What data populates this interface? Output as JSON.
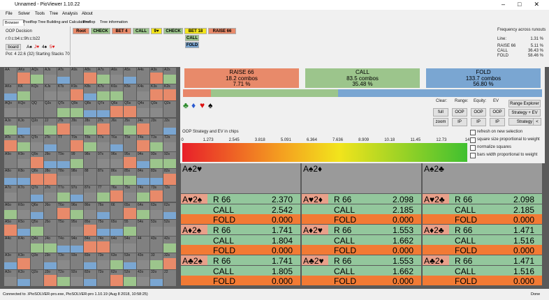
{
  "window": {
    "title": "Unnamed - PioViewer 1.10.22"
  },
  "menu": [
    "File",
    "Solver",
    "Tools",
    "Tree",
    "Analysis",
    "About"
  ],
  "tabs": [
    "Browser",
    "Postflop Tree Building and Calculations",
    "Preflop",
    "Tree information"
  ],
  "decision": {
    "label": "OOP Decision",
    "line": "r:0:c:b4:c:9h:c:b22",
    "board_button": "board",
    "cards": [
      "A♠",
      "J♥",
      "4♠",
      "5♥"
    ],
    "pot": "Pot: 4 22.6 (32) Starting Stacks 70"
  },
  "tree_nav": [
    "Root",
    "CHECK",
    "BET 4",
    "CALL",
    "9♥",
    "CHECK",
    "BET 18",
    "RAISE 66"
  ],
  "tree_children": [
    "CALL",
    "FOLD"
  ],
  "frequency": {
    "title": "Frequency across runouts",
    "rows": [
      [
        "Line:",
        "1.31 %"
      ],
      [
        "RAISE 66",
        "5.11 %"
      ],
      [
        "CALL",
        "36.43 %"
      ],
      [
        "FOLD",
        "58.46 %"
      ]
    ]
  },
  "actions": [
    {
      "name": "RAISE 66",
      "combos": "18.2 combos",
      "pct": "7.71 %"
    },
    {
      "name": "CALL",
      "combos": "83.5 combos",
      "pct": "35.48 %"
    },
    {
      "name": "FOLD",
      "combos": "133.7 combos",
      "pct": "56.80 %"
    }
  ],
  "suits": [
    "♣",
    "♦",
    "♥",
    "♠"
  ],
  "controls": {
    "labels": [
      "Clear:",
      "Range:",
      "Equity:",
      "EV"
    ],
    "buttons": [
      [
        "full",
        "OOP",
        "OOP",
        "OOP"
      ],
      [
        "zoom",
        "IP",
        "IP",
        "IP"
      ]
    ]
  },
  "side_buttons": [
    "Range Explorer",
    "Strategy + EV",
    "Strategy",
    "<"
  ],
  "options": [
    "refresh on new selection",
    "square size proportional to weight",
    "normalize squares",
    "bars width proportional to weight"
  ],
  "scale": {
    "title": "OOP Strategy and EV in chips",
    "ticks": [
      "0",
      "1.273",
      "2.545",
      "3.818",
      "5.091",
      "6.364",
      "7.636",
      "8.909",
      "10.18",
      "11.45",
      "12.73",
      "14"
    ]
  },
  "combos": {
    "headers": [
      "A♠2♥",
      "A♠2♦",
      "A♠2♣"
    ],
    "rows": [
      [
        {
          "hand": "A♥2♠",
          "lines": [
            [
              "R 66",
              "2.370"
            ],
            [
              "CALL",
              "2.542"
            ],
            [
              "FOLD",
              "0.000"
            ]
          ]
        },
        {
          "hand": "A♥2♦",
          "lines": [
            [
              "R 66",
              "2.098"
            ],
            [
              "CALL",
              "2.185"
            ],
            [
              "FOLD",
              "0.000"
            ]
          ]
        },
        {
          "hand": "A♥2♣",
          "lines": [
            [
              "R 66",
              "2.098"
            ],
            [
              "CALL",
              "2.185"
            ],
            [
              "FOLD",
              "0.000"
            ]
          ]
        }
      ],
      [
        {
          "hand": "A♦2♠",
          "lines": [
            [
              "R 66",
              "1.741"
            ],
            [
              "CALL",
              "1.804"
            ],
            [
              "FOLD",
              "0.000"
            ]
          ]
        },
        {
          "hand": "A♦2♥",
          "lines": [
            [
              "R 66",
              "1.553"
            ],
            [
              "CALL",
              "1.662"
            ],
            [
              "FOLD",
              "0.000"
            ]
          ]
        },
        {
          "hand": "A♦2♣",
          "lines": [
            [
              "R 66",
              "1.471"
            ],
            [
              "CALL",
              "1.516"
            ],
            [
              "FOLD",
              "0.000"
            ]
          ]
        }
      ],
      [
        {
          "hand": "A♣2♠",
          "lines": [
            [
              "R 66",
              "1.741"
            ],
            [
              "CALL",
              "1.805"
            ],
            [
              "FOLD",
              "0.000"
            ]
          ]
        },
        {
          "hand": "A♣2♥",
          "lines": [
            [
              "R 66",
              "1.553"
            ],
            [
              "CALL",
              "1.662"
            ],
            [
              "FOLD",
              "0.000"
            ]
          ]
        },
        {
          "hand": "A♣2♦",
          "lines": [
            [
              "R 66",
              "1.471"
            ],
            [
              "CALL",
              "1.516"
            ],
            [
              "FOLD",
              "0.000"
            ]
          ]
        }
      ]
    ]
  },
  "hand_matrix": [
    [
      "AA",
      "AKs",
      "AQs",
      "AJs",
      "ATs",
      "A9s",
      "A8s",
      "A7s",
      "A6s",
      "A5s",
      "A4s",
      "A3s",
      "A2s"
    ],
    [
      "AKo",
      "KK",
      "KQs",
      "KJs",
      "KTs",
      "K9s",
      "K8s",
      "K7s",
      "K6s",
      "K5s",
      "K4s",
      "K3s",
      "K2s"
    ],
    [
      "AQo",
      "KQo",
      "QQ",
      "QJs",
      "QTs",
      "Q9s",
      "Q8s",
      "Q7s",
      "Q6s",
      "Q5s",
      "Q4s",
      "Q3s",
      "Q2s"
    ],
    [
      "AJo",
      "KJo",
      "QJo",
      "JJ",
      "JTs",
      "J9s",
      "J8s",
      "J7s",
      "J6s",
      "J5s",
      "J4s",
      "J3s",
      "J2s"
    ],
    [
      "ATo",
      "KTo",
      "QTo",
      "JTo",
      "TT",
      "T9s",
      "T8s",
      "T7s",
      "T6s",
      "T5s",
      "T4s",
      "T3s",
      "T2s"
    ],
    [
      "A9o",
      "K9o",
      "Q9o",
      "J9o",
      "T9o",
      "99",
      "98s",
      "97s",
      "96s",
      "95s",
      "94s",
      "93s",
      "92s"
    ],
    [
      "A8o",
      "K8o",
      "Q8o",
      "J8o",
      "T8o",
      "98o",
      "88",
      "87s",
      "86s",
      "85s",
      "84s",
      "83s",
      "82s"
    ],
    [
      "A7o",
      "K7o",
      "Q7o",
      "J7o",
      "T7o",
      "97o",
      "87o",
      "77",
      "76s",
      "75s",
      "74s",
      "73s",
      "72s"
    ],
    [
      "A6o",
      "K6o",
      "Q6o",
      "J6o",
      "T6o",
      "96o",
      "86o",
      "76o",
      "66",
      "65s",
      "64s",
      "63s",
      "62s"
    ],
    [
      "A5o",
      "K5o",
      "Q5o",
      "J5o",
      "T5o",
      "95o",
      "85o",
      "75o",
      "65o",
      "55",
      "54s",
      "53s",
      "52s"
    ],
    [
      "A4o",
      "K4o",
      "Q4o",
      "J4o",
      "T4o",
      "94o",
      "84o",
      "74o",
      "64o",
      "54o",
      "44",
      "43s",
      "42s"
    ],
    [
      "A3o",
      "K3o",
      "Q3o",
      "J3o",
      "T3o",
      "93o",
      "83o",
      "73o",
      "63o",
      "53o",
      "43o",
      "33",
      "32s"
    ],
    [
      "A2o",
      "K2o",
      "Q2o",
      "J2o",
      "T2o",
      "92o",
      "82o",
      "72o",
      "62o",
      "52o",
      "42o",
      "32o",
      "22"
    ]
  ],
  "status": {
    "text": "Connected to .\\PioSOLVER-pro.exe, PioSOLVER-pro 1.10.19 (Aug  8 2018, 10:58:25)",
    "done": "Done"
  }
}
